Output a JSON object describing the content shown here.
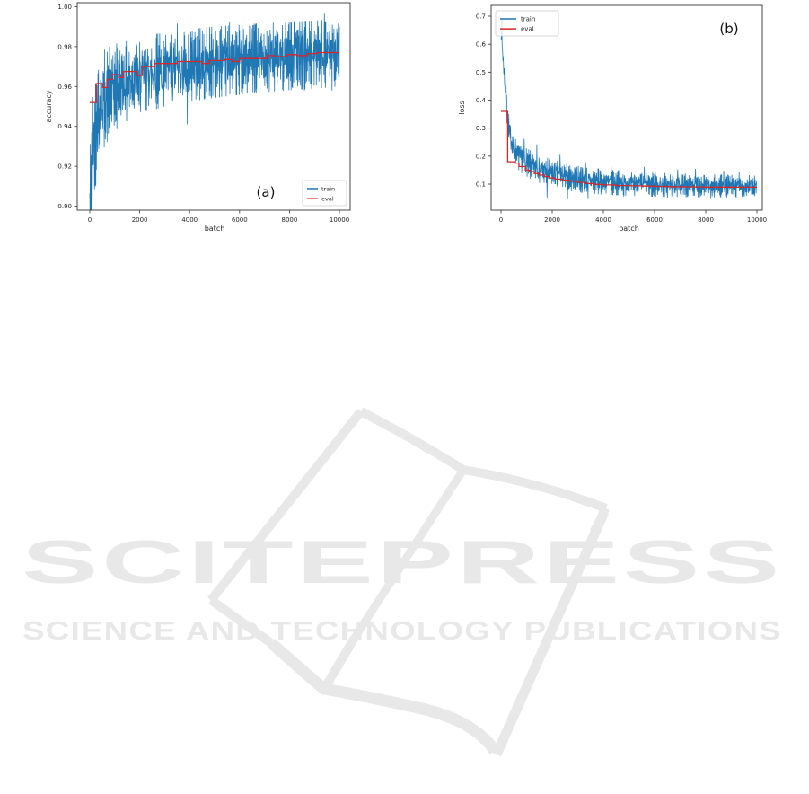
{
  "watermark": {
    "title": "SCITEPRESS",
    "subtitle": "SCIENCE AND TECHNOLOGY PUBLICATIONS",
    "color": "#e8e8e8"
  },
  "palette": {
    "train": "#1f77b4",
    "eval": "#d62728",
    "axis_text": "#262626",
    "spine": "#333333"
  },
  "chart_data": [
    {
      "id": "a",
      "type": "line",
      "annotation": "(a)",
      "xlabel": "batch",
      "ylabel": "accuracy",
      "xlim": [
        -504,
        10431
      ],
      "ylim": [
        0.898,
        1.002
      ],
      "xticks": [
        0,
        2000,
        4000,
        6000,
        8000,
        10000
      ],
      "xtick_labels": [
        "0",
        "2000",
        "4000",
        "6000",
        "8000",
        "10000"
      ],
      "yticks": [
        0.9,
        0.92,
        0.94,
        0.96,
        0.98,
        1.0
      ],
      "ytick_labels": [
        "0.90",
        "0.92",
        "0.94",
        "0.96",
        "0.98",
        "1.00"
      ],
      "legend": {
        "position": "lower right",
        "entries": [
          "train",
          "eval"
        ]
      },
      "series": [
        {
          "name": "train",
          "color": "#1f77b4",
          "style": "noisy",
          "trend": [
            [
              0,
              0.9
            ],
            [
              60,
              0.916
            ],
            [
              150,
              0.9335
            ],
            [
              300,
              0.9465
            ],
            [
              500,
              0.9525
            ],
            [
              800,
              0.9575
            ],
            [
              1200,
              0.9612
            ],
            [
              2000,
              0.9655
            ],
            [
              3000,
              0.9685
            ],
            [
              4000,
              0.9705
            ],
            [
              5000,
              0.9722
            ],
            [
              6500,
              0.974
            ],
            [
              8000,
              0.9753
            ],
            [
              10000,
              0.9768
            ]
          ],
          "band": [
            [
              0,
              0.03
            ],
            [
              150,
              0.027
            ],
            [
              400,
              0.021
            ],
            [
              800,
              0.018
            ],
            [
              1500,
              0.016
            ],
            [
              3000,
              0.0148
            ],
            [
              6000,
              0.014
            ],
            [
              10000,
              0.0135
            ]
          ],
          "spikes": [
            [
              90,
              0.897
            ],
            [
              380,
              0.931
            ],
            [
              620,
              0.9335
            ],
            [
              980,
              0.9405
            ],
            [
              1250,
              0.9455
            ],
            [
              1980,
              0.9505
            ],
            [
              2650,
              0.9515
            ],
            [
              3320,
              0.9525
            ],
            [
              3500,
              0.9915
            ],
            [
              3900,
              0.941
            ],
            [
              4600,
              0.9545
            ],
            [
              5200,
              0.9545
            ],
            [
              5600,
              0.9925
            ],
            [
              6300,
              0.9565
            ],
            [
              7400,
              0.9575
            ],
            [
              8200,
              0.993
            ],
            [
              8600,
              0.958
            ],
            [
              9400,
              0.9965
            ],
            [
              9700,
              0.958
            ]
          ]
        },
        {
          "name": "eval",
          "color": "#d62728",
          "style": "step",
          "points": [
            [
              0,
              0.952
            ],
            [
              260,
              0.952
            ],
            [
              260,
              0.9615
            ],
            [
              520,
              0.9615
            ],
            [
              520,
              0.9595
            ],
            [
              700,
              0.9595
            ],
            [
              700,
              0.9635
            ],
            [
              900,
              0.9635
            ],
            [
              900,
              0.966
            ],
            [
              1150,
              0.966
            ],
            [
              1150,
              0.9645
            ],
            [
              1350,
              0.9645
            ],
            [
              1350,
              0.9675
            ],
            [
              1900,
              0.9675
            ],
            [
              1900,
              0.9655
            ],
            [
              2100,
              0.9655
            ],
            [
              2100,
              0.97
            ],
            [
              2600,
              0.97
            ],
            [
              2600,
              0.9715
            ],
            [
              3500,
              0.9715
            ],
            [
              3500,
              0.9725
            ],
            [
              4500,
              0.9725
            ],
            [
              4500,
              0.9715
            ],
            [
              4800,
              0.9715
            ],
            [
              4800,
              0.973
            ],
            [
              5400,
              0.973
            ],
            [
              5400,
              0.9735
            ],
            [
              5700,
              0.9735
            ],
            [
              5700,
              0.9725
            ],
            [
              6000,
              0.9725
            ],
            [
              6000,
              0.974
            ],
            [
              7100,
              0.974
            ],
            [
              7100,
              0.9755
            ],
            [
              7400,
              0.9755
            ],
            [
              7400,
              0.975
            ],
            [
              7900,
              0.975
            ],
            [
              7900,
              0.976
            ],
            [
              8300,
              0.976
            ],
            [
              8300,
              0.9755
            ],
            [
              8700,
              0.9755
            ],
            [
              8700,
              0.9765
            ],
            [
              9100,
              0.9765
            ],
            [
              9100,
              0.977
            ],
            [
              10000,
              0.977
            ]
          ]
        }
      ]
    },
    {
      "id": "b",
      "type": "line",
      "annotation": "(b)",
      "xlabel": "batch",
      "ylabel": "loss",
      "xlim": [
        -386,
        10210
      ],
      "ylim": [
        0.007,
        0.7385
      ],
      "xticks": [
        0,
        2000,
        4000,
        6000,
        8000,
        10000
      ],
      "xtick_labels": [
        "0",
        "2000",
        "4000",
        "6000",
        "8000",
        "10000"
      ],
      "yticks": [
        0.1,
        0.2,
        0.3,
        0.4,
        0.5,
        0.6,
        0.7
      ],
      "ytick_labels": [
        "0.1",
        "0.2",
        "0.3",
        "0.4",
        "0.5",
        "0.6",
        "0.7"
      ],
      "legend": {
        "position": "upper left",
        "entries": [
          "train",
          "eval"
        ]
      },
      "series": [
        {
          "name": "train",
          "color": "#1f77b4",
          "style": "noisy",
          "trend": [
            [
              0,
              0.64
            ],
            [
              60,
              0.575
            ],
            [
              150,
              0.46
            ],
            [
              250,
              0.34
            ],
            [
              350,
              0.275
            ],
            [
              500,
              0.228
            ],
            [
              700,
              0.2
            ],
            [
              1000,
              0.176
            ],
            [
              1500,
              0.153
            ],
            [
              2000,
              0.139
            ],
            [
              2500,
              0.127
            ],
            [
              3000,
              0.118
            ],
            [
              4000,
              0.108
            ],
            [
              5000,
              0.102
            ],
            [
              6000,
              0.098
            ],
            [
              7000,
              0.096
            ],
            [
              8500,
              0.0935
            ],
            [
              10000,
              0.0915
            ]
          ],
          "band": [
            [
              0,
              0.025
            ],
            [
              200,
              0.035
            ],
            [
              500,
              0.04
            ],
            [
              1000,
              0.042
            ],
            [
              2000,
              0.04
            ],
            [
              3000,
              0.038
            ],
            [
              5000,
              0.035
            ],
            [
              10000,
              0.032
            ]
          ],
          "spikes": [
            [
              30,
              0.695
            ],
            [
              900,
              0.262
            ],
            [
              1400,
              0.242
            ],
            [
              1800,
              0.052
            ],
            [
              2300,
              0.205
            ],
            [
              2600,
              0.048
            ],
            [
              3300,
              0.178
            ],
            [
              3400,
              0.05
            ],
            [
              4300,
              0.165
            ],
            [
              4800,
              0.055
            ],
            [
              5600,
              0.162
            ],
            [
              6500,
              0.052
            ],
            [
              6900,
              0.152
            ],
            [
              7600,
              0.155
            ],
            [
              8200,
              0.05
            ],
            [
              8700,
              0.148
            ],
            [
              9300,
              0.142
            ],
            [
              9500,
              0.055
            ]
          ]
        },
        {
          "name": "eval",
          "color": "#d62728",
          "style": "step",
          "points": [
            [
              0,
              0.36
            ],
            [
              260,
              0.36
            ],
            [
              260,
              0.18
            ],
            [
              550,
              0.18
            ],
            [
              550,
              0.175
            ],
            [
              700,
              0.175
            ],
            [
              700,
              0.163
            ],
            [
              950,
              0.163
            ],
            [
              950,
              0.15
            ],
            [
              1100,
              0.15
            ],
            [
              1100,
              0.145
            ],
            [
              1300,
              0.145
            ],
            [
              1300,
              0.138
            ],
            [
              1500,
              0.138
            ],
            [
              1500,
              0.132
            ],
            [
              1700,
              0.132
            ],
            [
              1700,
              0.127
            ],
            [
              1900,
              0.127
            ],
            [
              1900,
              0.122
            ],
            [
              2100,
              0.122
            ],
            [
              2100,
              0.118
            ],
            [
              2400,
              0.118
            ],
            [
              2400,
              0.114
            ],
            [
              2700,
              0.114
            ],
            [
              2700,
              0.11
            ],
            [
              3000,
              0.11
            ],
            [
              3000,
              0.106
            ],
            [
              3300,
              0.106
            ],
            [
              3300,
              0.102
            ],
            [
              3600,
              0.102
            ],
            [
              3600,
              0.099
            ],
            [
              4000,
              0.099
            ],
            [
              4000,
              0.097
            ],
            [
              4500,
              0.097
            ],
            [
              4500,
              0.095
            ],
            [
              5000,
              0.095
            ],
            [
              5000,
              0.094
            ],
            [
              5500,
              0.094
            ],
            [
              5500,
              0.093
            ],
            [
              6000,
              0.093
            ],
            [
              6000,
              0.092
            ],
            [
              6500,
              0.092
            ],
            [
              6500,
              0.091
            ],
            [
              7000,
              0.091
            ],
            [
              7000,
              0.0905
            ],
            [
              7500,
              0.0905
            ],
            [
              7500,
              0.09
            ],
            [
              8000,
              0.09
            ],
            [
              8000,
              0.0895
            ],
            [
              9000,
              0.0895
            ],
            [
              9000,
              0.089
            ],
            [
              10000,
              0.089
            ]
          ]
        }
      ]
    }
  ]
}
